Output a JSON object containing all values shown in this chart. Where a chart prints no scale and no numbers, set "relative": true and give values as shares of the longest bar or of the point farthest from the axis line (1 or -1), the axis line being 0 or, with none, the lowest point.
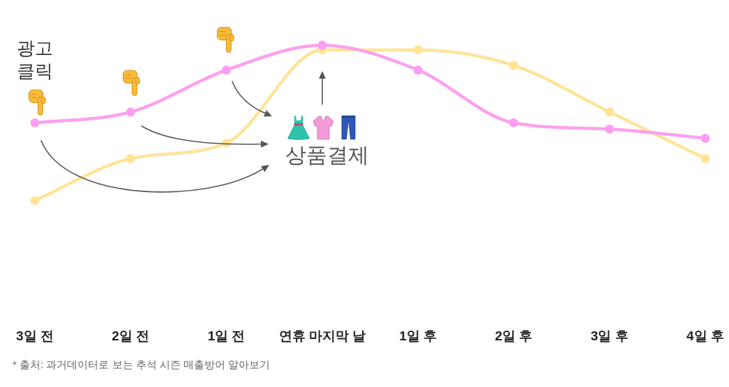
{
  "chart_data": {
    "type": "line",
    "categories": [
      "3일 전",
      "2일 전",
      "1일 전",
      "연휴 마지막 날",
      "1일 후",
      "2일 후",
      "3일 후",
      "4일 후"
    ],
    "relative": true,
    "series": [
      {
        "color": "#fd9ff0",
        "values": [
          0.5,
          0.57,
          0.84,
          1,
          0.84,
          0.5,
          0.46,
          0.4
        ]
      },
      {
        "color": "#ffe397",
        "values": [
          0,
          0.27,
          0.37,
          0.97,
          0.97,
          0.87,
          0.57,
          0.27
        ]
      }
    ],
    "marker": "circle",
    "line_style": "solid",
    "grid": false,
    "legend": false,
    "tick_labels": "x",
    "annotations": [
      "광고 클릭",
      "상품결제",
      "* 출처: 과거데이터로 보는 추석 시즌 매출방어 알아보기"
    ]
  }
}
